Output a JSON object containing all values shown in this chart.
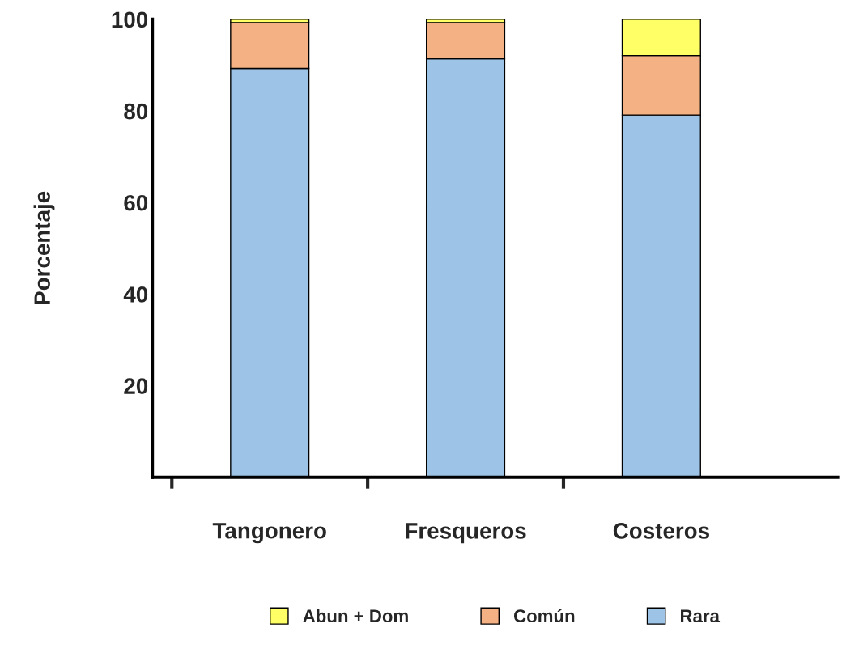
{
  "chart_data": {
    "type": "bar",
    "stacked": true,
    "ylabel": "Porcentaje",
    "categories": [
      "Tangonero",
      "Fresqueros",
      "Costeros"
    ],
    "series": [
      {
        "name": "Rara",
        "color": "#9dc3e6",
        "values": [
          89.3,
          91.4,
          79.1
        ]
      },
      {
        "name": "Común",
        "color": "#f4b183",
        "values": [
          10.0,
          7.9,
          13.0
        ]
      },
      {
        "name": "Abun + Dom",
        "color": "#ffff66",
        "values": [
          0.7,
          0.7,
          7.9
        ]
      }
    ],
    "ylim": [
      0,
      100
    ],
    "yticks": [
      20,
      40,
      60,
      80,
      100
    ],
    "grid": false,
    "legend": "bottom"
  }
}
